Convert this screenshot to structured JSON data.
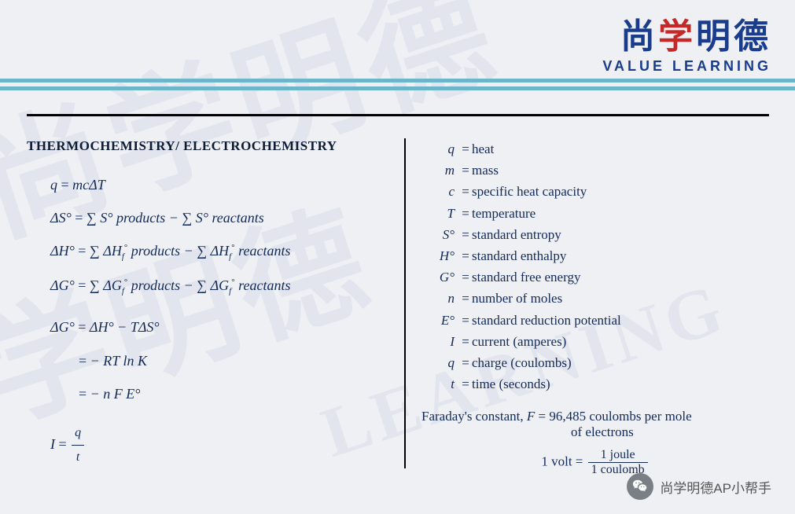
{
  "watermark": {
    "text1": "尚学明德",
    "text2": "尚学明德",
    "text3": "LEARNING"
  },
  "header": {
    "cn_blue1": "尚",
    "cn_red": "学",
    "cn_blue2": "明德",
    "en": "VALUE LEARNING"
  },
  "section": {
    "title": "THERMOCHEMISTRY/ ELECTROCHEMISTRY"
  },
  "formulas": {
    "f1_lhs": "q",
    "f1_rhs": "mcΔT",
    "f2_lhs": "ΔS°",
    "f2_rhs": "∑ S° products − ∑ S° reactants",
    "f3_lhs": "ΔH°",
    "f3_rhs_a": "∑ ΔH",
    "f3_rhs_b": " products − ∑ ΔH",
    "f3_rhs_c": " reactants",
    "f4_lhs": "ΔG°",
    "f4_rhs_a": "∑ ΔG",
    "f4_rhs_b": " products − ∑ ΔG",
    "f4_rhs_c": " reactants",
    "f5_lhs": "ΔG°",
    "f5_rhs": "ΔH° − TΔS°",
    "f6": "− RT ln K",
    "f7": "− n F E°",
    "f8_lhs": "I",
    "f8_num": "q",
    "f8_den": "t"
  },
  "defs": [
    {
      "sym": "q",
      "desc": "heat"
    },
    {
      "sym": "m",
      "desc": "mass"
    },
    {
      "sym": "c",
      "desc": "specific heat capacity"
    },
    {
      "sym": "T",
      "desc": "temperature"
    },
    {
      "sym": "S°",
      "desc": "standard entropy"
    },
    {
      "sym": "H°",
      "desc": "standard enthalpy"
    },
    {
      "sym": "G°",
      "desc": "standard free energy"
    },
    {
      "sym": "n",
      "desc": "number of moles"
    },
    {
      "sym": "E°",
      "desc": "standard reduction potential"
    },
    {
      "sym": "I",
      "desc": "current (amperes)"
    },
    {
      "sym": "q",
      "desc": "charge (coulombs)"
    },
    {
      "sym": "t",
      "desc": "time (seconds)"
    }
  ],
  "faraday": {
    "line1_a": "Faraday's constant, ",
    "line1_b": "F",
    "line1_c": " = 96,485 coulombs per mole",
    "line2": "of electrons"
  },
  "volt": {
    "lhs": "1 volt",
    "num": "1 joule",
    "den": "1 coulomb"
  },
  "wechat": {
    "text": "尚学明德AP小帮手"
  },
  "colors": {
    "text": "#132a57",
    "brand_blue": "#1a3c8c",
    "brand_red": "#c62828",
    "bar": "#6db6c9"
  }
}
